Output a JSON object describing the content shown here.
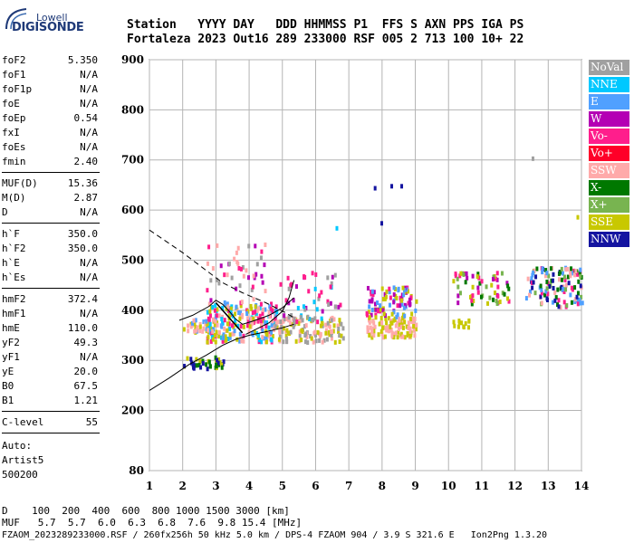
{
  "logo": {
    "top": "Lowell",
    "main": "DIGISONDE"
  },
  "header": {
    "line1": "Station   YYYY DAY   DDD HHMMSS P1  FFS S AXN PPS IGA PS",
    "line2": "Fortaleza 2023 Out16 289 233000 RSF 005 2 713 100 10+ 22"
  },
  "params": [
    {
      "name": "foF2",
      "value": "5.350"
    },
    {
      "name": "foF1",
      "value": "N/A"
    },
    {
      "name": "foF1p",
      "value": "N/A"
    },
    {
      "name": "foE",
      "value": "N/A"
    },
    {
      "name": "foEp",
      "value": "0.54"
    },
    {
      "name": "fxI",
      "value": "N/A"
    },
    {
      "name": "foEs",
      "value": "N/A"
    },
    {
      "name": "fmin",
      "value": "2.40"
    },
    {
      "name": "MUF(D)",
      "value": "15.36"
    },
    {
      "name": "M(D)",
      "value": "2.87"
    },
    {
      "name": "D",
      "value": "N/A"
    },
    {
      "name": "h`F",
      "value": "350.0"
    },
    {
      "name": "h`F2",
      "value": "350.0"
    },
    {
      "name": "h`E",
      "value": "N/A"
    },
    {
      "name": "h`Es",
      "value": "N/A"
    },
    {
      "name": "hmF2",
      "value": "372.4"
    },
    {
      "name": "hmF1",
      "value": "N/A"
    },
    {
      "name": "hmE",
      "value": "110.0"
    },
    {
      "name": "yF2",
      "value": "49.3"
    },
    {
      "name": "yF1",
      "value": "N/A"
    },
    {
      "name": "yE",
      "value": "20.0"
    },
    {
      "name": "B0",
      "value": "67.5"
    },
    {
      "name": "B1",
      "value": "1.21"
    },
    {
      "name": "C-level",
      "value": "55"
    }
  ],
  "autoscaling": {
    "line1": "Auto:",
    "line2": "Artist5",
    "line3": "500200"
  },
  "legend": [
    {
      "label": "NoVal",
      "color": "#a0a0a0"
    },
    {
      "label": "NNE",
      "color": "#00c8ff"
    },
    {
      "label": "E",
      "color": "#50a0ff"
    },
    {
      "label": "W",
      "color": "#b400b4"
    },
    {
      "label": "Vo-",
      "color": "#ff1e8c"
    },
    {
      "label": "Vo+",
      "color": "#ff0028"
    },
    {
      "label": "SSW",
      "color": "#ffaaaa"
    },
    {
      "label": "X-",
      "color": "#007800"
    },
    {
      "label": "X+",
      "color": "#78b450"
    },
    {
      "label": "SSE",
      "color": "#c8c800"
    },
    {
      "label": "NNW",
      "color": "#1414a0"
    }
  ],
  "footer": {
    "d_line": "D    100  200  400  600  800 1000 1500 3000 [km]",
    "muf_line": "MUF   5.7  5.7  6.0  6.3  6.8  7.6  9.8 15.4 [MHz]",
    "file_line": "FZAOM_2023289233000.RSF / 260fx256h 50 kHz 5.0 km / DPS-4 FZAOM 904 / 3.9 S 321.6 E   Ion2Png 1.3.20"
  },
  "chart_data": {
    "type": "scatter",
    "xlim": [
      1,
      14
    ],
    "ylim": [
      80,
      900
    ],
    "x_ticks": [
      1,
      2,
      3,
      4,
      5,
      6,
      7,
      8,
      9,
      10,
      11,
      12,
      13,
      14
    ],
    "y_ticks": [
      80,
      200,
      300,
      400,
      500,
      600,
      700,
      800,
      900
    ],
    "grid": true,
    "clusters": [
      {
        "x": [
          2.0,
          3.2
        ],
        "y": [
          285,
          310
        ],
        "colors": [
          "#c8c800",
          "#007800",
          "#1414a0"
        ],
        "count": 40
      },
      {
        "x": [
          2.0,
          3.0
        ],
        "y": [
          360,
          385
        ],
        "colors": [
          "#50a0ff",
          "#c8c800",
          "#ffaaaa"
        ],
        "count": 40
      },
      {
        "x": [
          2.7,
          4.8
        ],
        "y": [
          340,
          420
        ],
        "colors": [
          "#c8c800",
          "#00c8ff",
          "#ffaaaa",
          "#50a0ff",
          "#ff1e8c"
        ],
        "count": 220
      },
      {
        "x": [
          2.6,
          4.5
        ],
        "y": [
          420,
          540
        ],
        "colors": [
          "#b400b4",
          "#ff1e8c",
          "#ffaaaa",
          "#a0a0a0"
        ],
        "count": 45
      },
      {
        "x": [
          4.7,
          6.8
        ],
        "y": [
          340,
          390
        ],
        "colors": [
          "#ffaaaa",
          "#c8c800",
          "#a0a0a0"
        ],
        "count": 130
      },
      {
        "x": [
          4.9,
          6.8
        ],
        "y": [
          380,
          480
        ],
        "colors": [
          "#a0a0a0",
          "#ff1e8c",
          "#00c8ff",
          "#b400b4"
        ],
        "count": 50
      },
      {
        "x": [
          7.5,
          9.0
        ],
        "y": [
          350,
          390
        ],
        "colors": [
          "#ffaaaa",
          "#c8c800"
        ],
        "count": 110
      },
      {
        "x": [
          7.5,
          9.0
        ],
        "y": [
          390,
          450
        ],
        "colors": [
          "#c8c800",
          "#ff1e8c",
          "#50a0ff",
          "#b400b4"
        ],
        "count": 90
      },
      {
        "x": [
          10.1,
          10.6
        ],
        "y": [
          370,
          385
        ],
        "colors": [
          "#c8c800"
        ],
        "count": 12
      },
      {
        "x": [
          10.1,
          11.8
        ],
        "y": [
          415,
          480
        ],
        "colors": [
          "#ff1e8c",
          "#007800",
          "#78b450",
          "#b400b4",
          "#c8c800"
        ],
        "count": 60
      },
      {
        "x": [
          12.3,
          14.0
        ],
        "y": [
          410,
          490
        ],
        "colors": [
          "#007800",
          "#1414a0",
          "#ff1e8c",
          "#50a0ff",
          "#78b450",
          "#ffaaaa"
        ],
        "count": 120
      }
    ],
    "single_points": [
      {
        "x": 7.75,
        "y": 648,
        "color": "#1414a0"
      },
      {
        "x": 8.25,
        "y": 652,
        "color": "#1414a0"
      },
      {
        "x": 8.55,
        "y": 652,
        "color": "#1414a0"
      },
      {
        "x": 6.6,
        "y": 568,
        "color": "#00c8ff"
      },
      {
        "x": 7.95,
        "y": 578,
        "color": "#1414a0"
      },
      {
        "x": 13.85,
        "y": 590,
        "color": "#c8c800"
      },
      {
        "x": 12.5,
        "y": 707,
        "color": "#a0a0a0"
      }
    ],
    "profile_dashed": [
      [
        1.0,
        560
      ],
      [
        2.0,
        515
      ],
      [
        2.6,
        485
      ],
      [
        3.2,
        455
      ],
      [
        3.8,
        435
      ],
      [
        4.5,
        415
      ],
      [
        5.1,
        395
      ],
      [
        5.35,
        385
      ]
    ],
    "profile_solid": [
      [
        1.0,
        240
      ],
      [
        1.6,
        265
      ],
      [
        2.2,
        292
      ],
      [
        2.7,
        310
      ],
      [
        3.2,
        330
      ],
      [
        3.6,
        342
      ],
      [
        4.0,
        350
      ],
      [
        4.5,
        357
      ],
      [
        5.0,
        365
      ],
      [
        5.35,
        372
      ]
    ],
    "trace_o": [
      [
        1.9,
        380
      ],
      [
        2.3,
        390
      ],
      [
        2.8,
        408
      ],
      [
        3.0,
        420
      ],
      [
        3.2,
        412
      ],
      [
        3.4,
        398
      ],
      [
        3.6,
        382
      ],
      [
        3.8,
        372
      ],
      [
        4.1,
        378
      ],
      [
        4.6,
        390
      ],
      [
        5.0,
        405
      ],
      [
        5.35,
        425
      ]
    ],
    "trace_x": [
      [
        3.9,
        352
      ],
      [
        4.2,
        362
      ],
      [
        4.6,
        375
      ],
      [
        5.0,
        398
      ],
      [
        5.2,
        425
      ],
      [
        5.35,
        460
      ]
    ],
    "foF2_marker": [
      [
        3.0,
        415
      ],
      [
        3.8,
        355
      ]
    ]
  }
}
